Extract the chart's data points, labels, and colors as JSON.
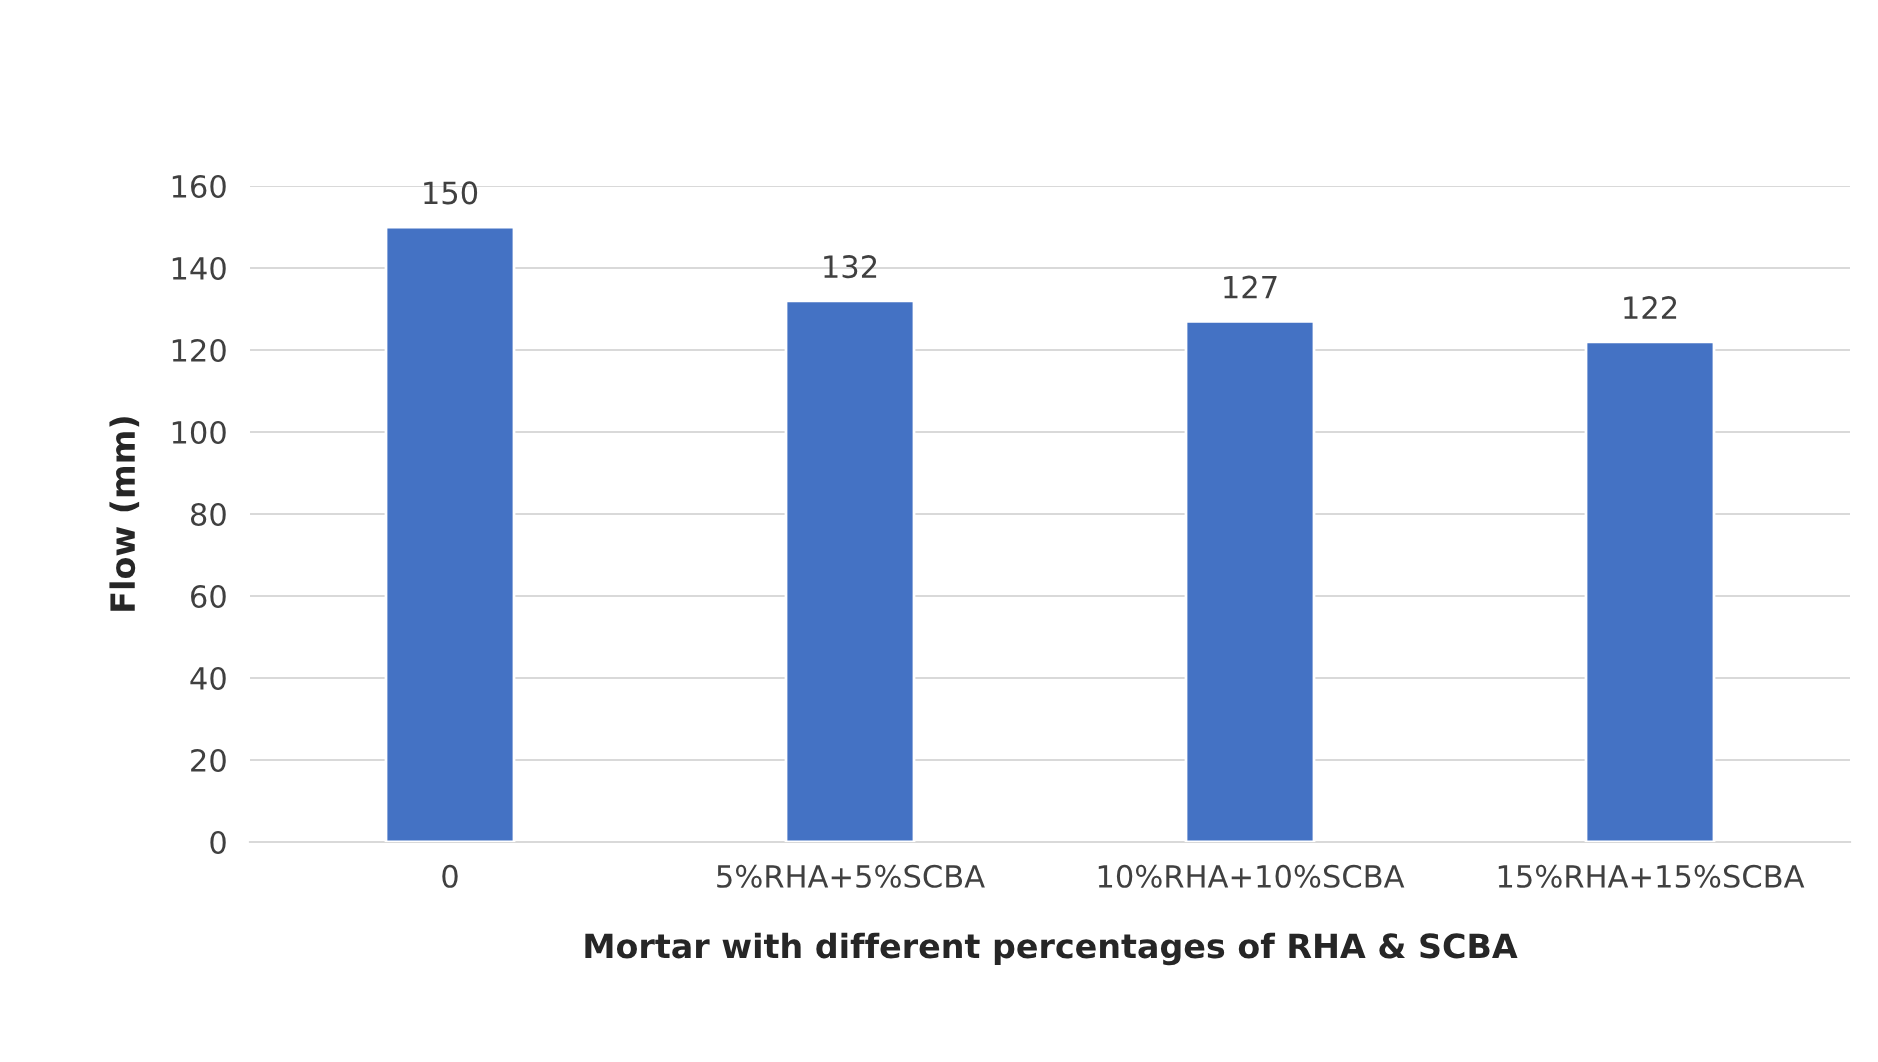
{
  "chart_data": {
    "type": "bar",
    "xlabel": "Mortar with different percentages of RHA & SCBA",
    "ylabel": "Flow (mm)",
    "categories": [
      "0",
      "5%RHA+5%SCBA",
      "10%RHA+10%SCBA",
      "15%RHA+15%SCBA"
    ],
    "values": [
      150,
      132,
      127,
      122
    ],
    "color": "#4472c4",
    "ylim": [
      0,
      160
    ],
    "yticks": [
      0,
      20,
      40,
      60,
      80,
      100,
      120,
      140,
      160
    ],
    "grid": "y",
    "data_labels": true
  }
}
